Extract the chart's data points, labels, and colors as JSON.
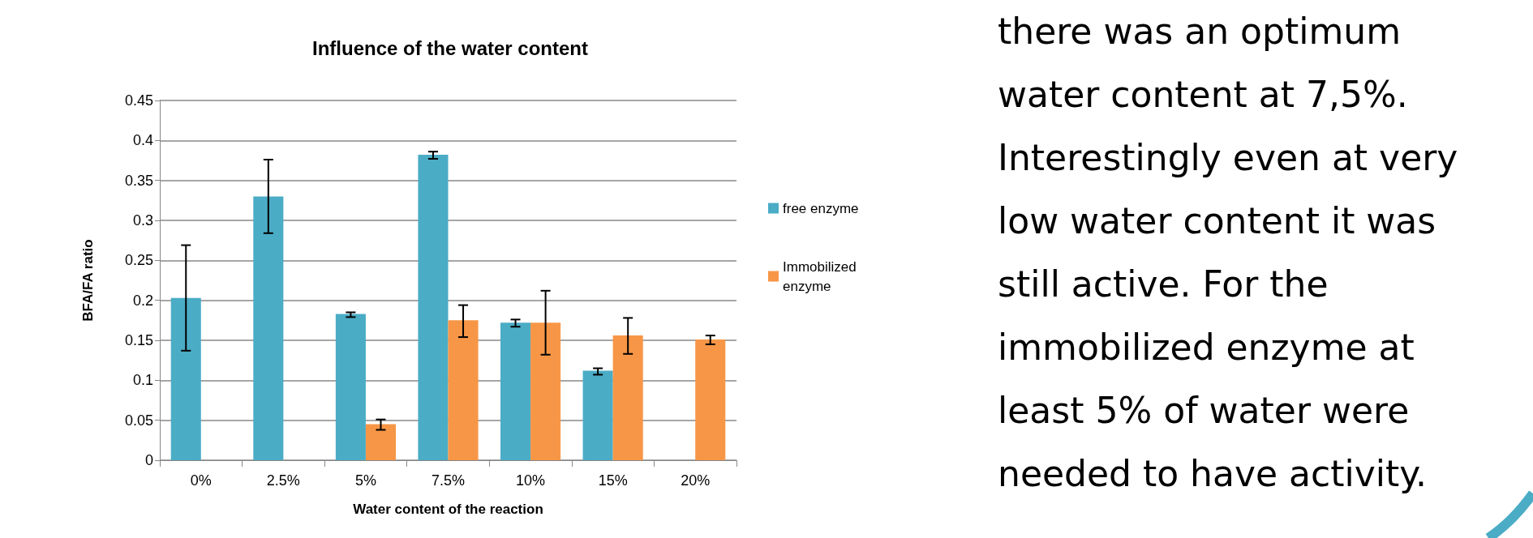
{
  "chart_data": {
    "type": "bar",
    "title": "Influence of the water content",
    "xlabel": "Water content of the reaction",
    "ylabel": "BFA/FA ratio",
    "categories": [
      "0%",
      "2.5%",
      "5%",
      "7.5%",
      "10%",
      "15%",
      "20%"
    ],
    "series": [
      {
        "name": "free enzyme",
        "color": "#4bacc6",
        "values": [
          0.203,
          0.33,
          0.183,
          0.382,
          0.172,
          0.112,
          0
        ],
        "errors": [
          [
            0.137,
            0.269
          ],
          [
            0.284,
            0.376
          ],
          [
            0.179,
            0.185
          ],
          [
            0.377,
            0.386
          ],
          [
            0.167,
            0.176
          ],
          [
            0.107,
            0.115
          ],
          null
        ]
      },
      {
        "name": "Immobilized enzyme",
        "color": "#f79646",
        "values": [
          0,
          0,
          0.045,
          0.175,
          0.172,
          0.156,
          0.151
        ],
        "errors": [
          null,
          null,
          [
            0.038,
            0.051
          ],
          [
            0.154,
            0.194
          ],
          [
            0.132,
            0.212
          ],
          [
            0.133,
            0.178
          ],
          [
            0.145,
            0.156
          ]
        ]
      }
    ],
    "ylim": [
      0,
      0.45
    ],
    "yticks": [
      0,
      0.05,
      0.1,
      0.15,
      0.2,
      0.25,
      0.3,
      0.35,
      0.4,
      0.45
    ],
    "grid": "y",
    "legend": "right",
    "annotations": [
      "there was an optimum water content at 7,5%. Interestingly even at very low water content it was still active. For the immobilized enzyme at least 5% of water were needed to have activity."
    ]
  }
}
